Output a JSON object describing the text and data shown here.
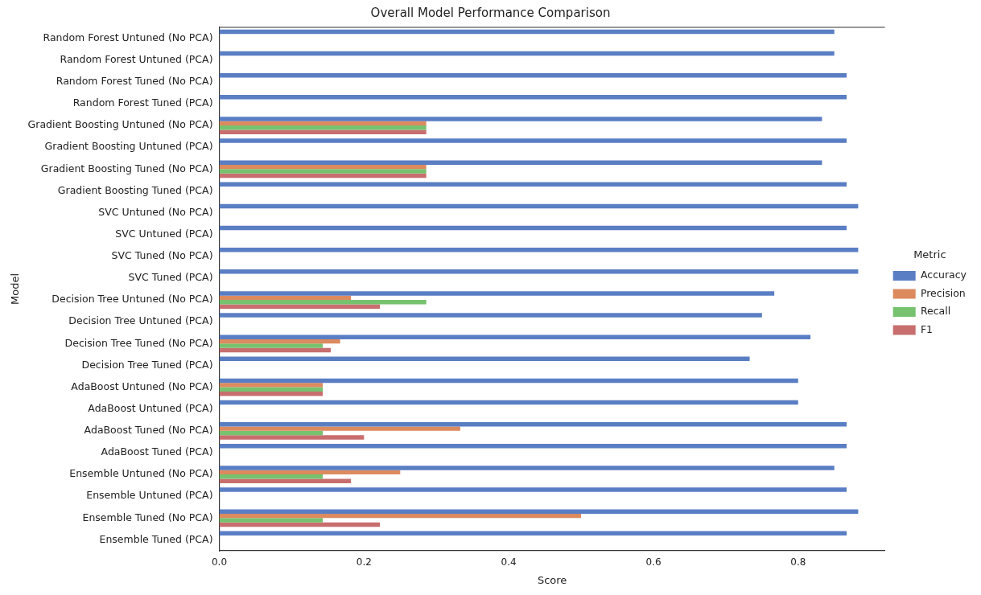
{
  "chart_data": {
    "type": "bar",
    "orientation": "horizontal",
    "title": "Overall Model Performance Comparison",
    "xlabel": "Score",
    "ylabel": "Model",
    "legend_title": "Metric",
    "legend": "right",
    "grid": false,
    "categories": [
      "Random Forest Untuned (No PCA)",
      "Random Forest Untuned (PCA)",
      "Random Forest Tuned (No PCA)",
      "Random Forest Tuned (PCA)",
      "Gradient Boosting Untuned (No PCA)",
      "Gradient Boosting Untuned (PCA)",
      "Gradient Boosting Tuned (No PCA)",
      "Gradient Boosting Tuned (PCA)",
      "SVC Untuned (No PCA)",
      "SVC Untuned (PCA)",
      "SVC Tuned (No PCA)",
      "SVC Tuned (PCA)",
      "Decision Tree Untuned (No PCA)",
      "Decision Tree Untuned (PCA)",
      "Decision Tree Tuned (No PCA)",
      "Decision Tree Tuned (PCA)",
      "AdaBoost Untuned (No PCA)",
      "AdaBoost Untuned (PCA)",
      "AdaBoost Tuned (No PCA)",
      "AdaBoost Tuned (PCA)",
      "Ensemble Untuned (No PCA)",
      "Ensemble Untuned (PCA)",
      "Ensemble Tuned (No PCA)",
      "Ensemble Tuned (PCA)"
    ],
    "series": [
      {
        "name": "Accuracy",
        "color": "#5a7ec4",
        "values": [
          0.85,
          0.85,
          0.867,
          0.867,
          0.833,
          0.867,
          0.833,
          0.867,
          0.883,
          0.867,
          0.883,
          0.883,
          0.767,
          0.75,
          0.817,
          0.733,
          0.8,
          0.8,
          0.867,
          0.867,
          0.85,
          0.867,
          0.883,
          0.867
        ]
      },
      {
        "name": "Precision",
        "color": "#dc8a5e",
        "values": [
          0,
          0,
          0,
          0,
          0.286,
          0,
          0.286,
          0,
          0,
          0,
          0,
          0,
          0.182,
          0,
          0.167,
          0,
          0.143,
          0,
          0.333,
          0,
          0.25,
          0,
          0.5,
          0
        ]
      },
      {
        "name": "Recall",
        "color": "#76c26e",
        "values": [
          0,
          0,
          0,
          0,
          0.286,
          0,
          0.286,
          0,
          0,
          0,
          0,
          0,
          0.286,
          0,
          0.143,
          0,
          0.143,
          0,
          0.143,
          0,
          0.143,
          0,
          0.143,
          0
        ]
      },
      {
        "name": "F1",
        "color": "#c86e6e",
        "values": [
          0,
          0,
          0,
          0,
          0.286,
          0,
          0.286,
          0,
          0,
          0,
          0,
          0,
          0.222,
          0,
          0.154,
          0,
          0.143,
          0,
          0.2,
          0,
          0.182,
          0,
          0.222,
          0
        ]
      }
    ],
    "xlim": [
      0,
      0.92
    ],
    "xticks": [
      {
        "value": 0,
        "label": "0.0"
      },
      {
        "value": 0.2,
        "label": "0.2"
      },
      {
        "value": 0.4,
        "label": "0.4"
      },
      {
        "value": 0.6,
        "label": "0.6"
      },
      {
        "value": 0.8,
        "label": "0.8"
      }
    ]
  }
}
